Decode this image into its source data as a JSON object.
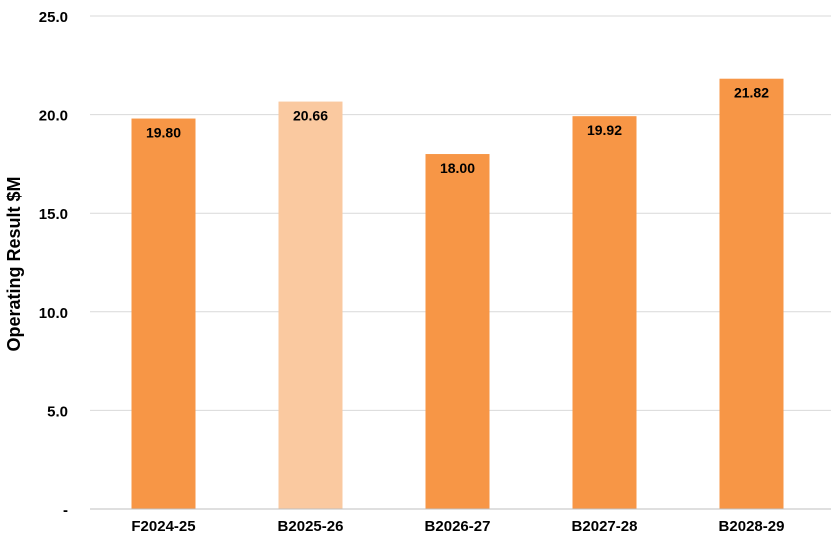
{
  "chart_data": {
    "type": "bar",
    "title": "",
    "xlabel": "",
    "ylabel": "Operating Result $M",
    "categories": [
      "F2024-25",
      "B2025-26",
      "B2026-27",
      "B2027-28",
      "B2028-29"
    ],
    "values": [
      19.8,
      20.66,
      18.0,
      19.92,
      21.82
    ],
    "data_labels": [
      "19.80",
      "20.66",
      "18.00",
      "19.92",
      "21.82"
    ],
    "ylim": [
      0,
      25
    ],
    "yticks": [
      0,
      5,
      10,
      15,
      20,
      25
    ],
    "ytick_labels": [
      "-",
      "5.0",
      "10.0",
      "15.0",
      "20.0",
      "25.0"
    ],
    "grid": true,
    "legend": "none",
    "colors": {
      "bar": "#F79646",
      "highlight_bar": "#FAC9A0",
      "grid": "#D9D9D9",
      "axis": "#BFBFBF"
    },
    "highlight_index": 1
  }
}
